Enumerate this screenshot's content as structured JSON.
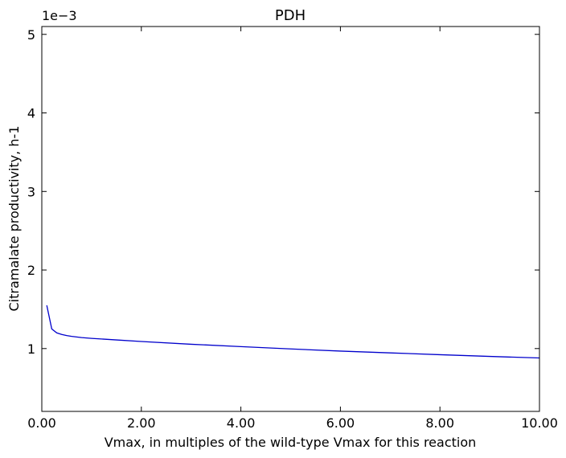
{
  "chart_data": {
    "type": "line",
    "title": "PDH",
    "xlabel": "Vmax, in multiples of the wild-type Vmax for this reaction",
    "ylabel": "Citramalate productivity, h-1",
    "y_scale_label": "1e−3",
    "xlim": [
      0,
      10
    ],
    "ylim": [
      0.0002,
      0.0051
    ],
    "x_ticks": [
      0,
      2,
      4,
      6,
      8,
      10
    ],
    "x_tick_labels": [
      "0.00",
      "2.00",
      "4.00",
      "6.00",
      "8.00",
      "10.00"
    ],
    "y_ticks": [
      0.001,
      0.002,
      0.003,
      0.004,
      0.005
    ],
    "y_tick_labels": [
      "1",
      "2",
      "3",
      "4",
      "5"
    ],
    "grid": false,
    "series": [
      {
        "color": "#0000cc",
        "x": [
          0.1,
          0.2,
          0.3,
          0.4,
          0.5,
          0.6,
          0.8,
          1.0,
          1.5,
          2.0,
          3.0,
          4.0,
          5.0,
          6.0,
          7.0,
          8.0,
          9.0,
          10.0
        ],
        "y": [
          0.00155,
          0.00125,
          0.0012,
          0.00118,
          0.001165,
          0.001155,
          0.00114,
          0.00113,
          0.00111,
          0.00109,
          0.001055,
          0.001025,
          0.000995,
          0.000968,
          0.000945,
          0.000922,
          0.0009,
          0.00088
        ]
      }
    ]
  }
}
